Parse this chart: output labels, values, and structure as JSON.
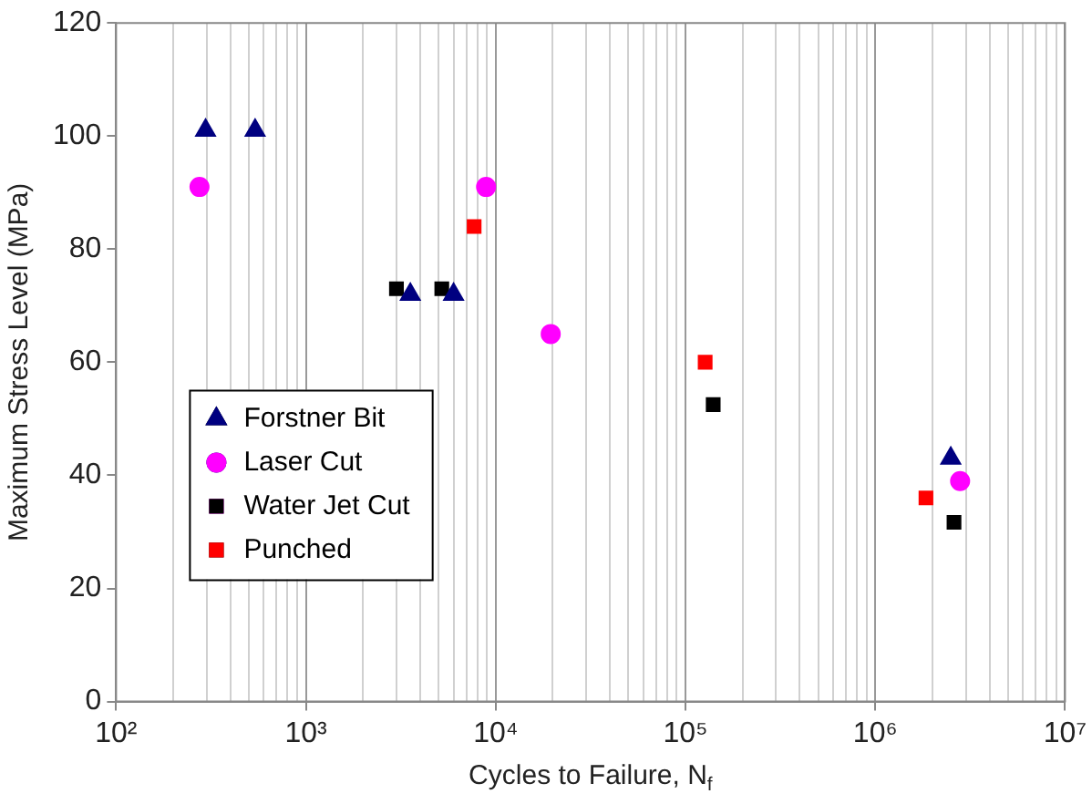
{
  "chart_data": {
    "type": "scatter",
    "xlabel": "Cycles to Failure, N$_{f}$",
    "ylabel": "Maximum Stress Level (MPa)",
    "log": "x",
    "grid": "x",
    "legend": "center left",
    "xlim": [
      100,
      10000000
    ],
    "xticks": [
      {
        "value": 100,
        "label": "10²"
      },
      {
        "value": 1000,
        "label": "10³"
      },
      {
        "value": 10000,
        "label": "10⁴"
      },
      {
        "value": 100000,
        "label": "10⁵"
      },
      {
        "value": 1000000,
        "label": "10⁶"
      },
      {
        "value": 10000000,
        "label": "10⁷"
      }
    ],
    "ylim": [
      0,
      120
    ],
    "yticks": [
      0,
      20,
      40,
      60,
      80,
      100,
      120
    ],
    "series": [
      {
        "name": "Forstner Bit",
        "color": "#000080",
        "marker": "triangle",
        "x": [
          296,
          540,
          3550,
          6000,
          2500000
        ],
        "values": [
          101,
          101,
          72,
          72,
          43
        ]
      },
      {
        "name": "Laser Cut",
        "color": "#ff00ff",
        "marker": "circle",
        "x": [
          275,
          8900,
          19500,
          2800000
        ],
        "values": [
          91,
          91,
          65,
          39
        ]
      },
      {
        "name": "Water Jet Cut",
        "color": "#000000",
        "marker": "square",
        "x": [
          3000,
          5200,
          140000,
          2600000
        ],
        "values": [
          73,
          73,
          52.5,
          31.7
        ]
      },
      {
        "name": "Punched",
        "color": "#ff0000",
        "marker": "square",
        "x": [
          7700,
          127000,
          1850000
        ],
        "values": [
          84,
          60,
          36
        ]
      }
    ]
  }
}
